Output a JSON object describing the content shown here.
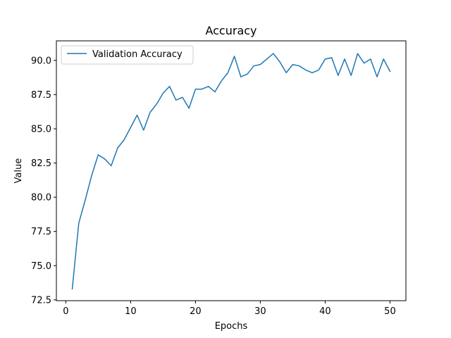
{
  "chart_data": {
    "type": "line",
    "title": "Accuracy",
    "xlabel": "Epochs",
    "ylabel": "Value",
    "xlim": [
      -1.45,
      52.45
    ],
    "ylim": [
      72.44,
      91.43
    ],
    "x_ticks": [
      0,
      10,
      20,
      30,
      40,
      50
    ],
    "x_tick_labels": [
      "0",
      "10",
      "20",
      "30",
      "40",
      "50"
    ],
    "y_ticks": [
      72.5,
      75.0,
      77.5,
      80.0,
      82.5,
      85.0,
      87.5,
      90.0
    ],
    "y_tick_labels": [
      "72.5",
      "75.0",
      "77.5",
      "80.0",
      "82.5",
      "85.0",
      "87.5",
      "90.0"
    ],
    "grid": false,
    "legend_position": "upper-left",
    "series": [
      {
        "name": "Validation Accuracy",
        "color": "#1f77b4",
        "x": [
          1,
          2,
          3,
          4,
          5,
          6,
          7,
          8,
          9,
          10,
          11,
          12,
          13,
          14,
          15,
          16,
          17,
          18,
          19,
          20,
          21,
          22,
          23,
          24,
          25,
          26,
          27,
          28,
          29,
          30,
          31,
          32,
          33,
          34,
          35,
          36,
          37,
          38,
          39,
          40,
          41,
          42,
          43,
          44,
          45,
          46,
          47,
          48,
          49,
          50
        ],
        "y": [
          73.3,
          78.1,
          79.8,
          81.6,
          83.1,
          82.8,
          82.3,
          83.6,
          84.2,
          85.1,
          86.0,
          84.9,
          86.2,
          86.8,
          87.6,
          88.1,
          87.1,
          87.3,
          86.5,
          87.9,
          87.9,
          88.1,
          87.7,
          88.5,
          89.1,
          90.3,
          88.8,
          89.0,
          89.6,
          89.7,
          90.1,
          90.5,
          89.9,
          89.1,
          89.7,
          89.6,
          89.3,
          89.1,
          89.3,
          90.1,
          90.2,
          88.9,
          90.1,
          88.9,
          90.5,
          89.8,
          90.1,
          88.8,
          90.1,
          89.2
        ]
      }
    ]
  }
}
